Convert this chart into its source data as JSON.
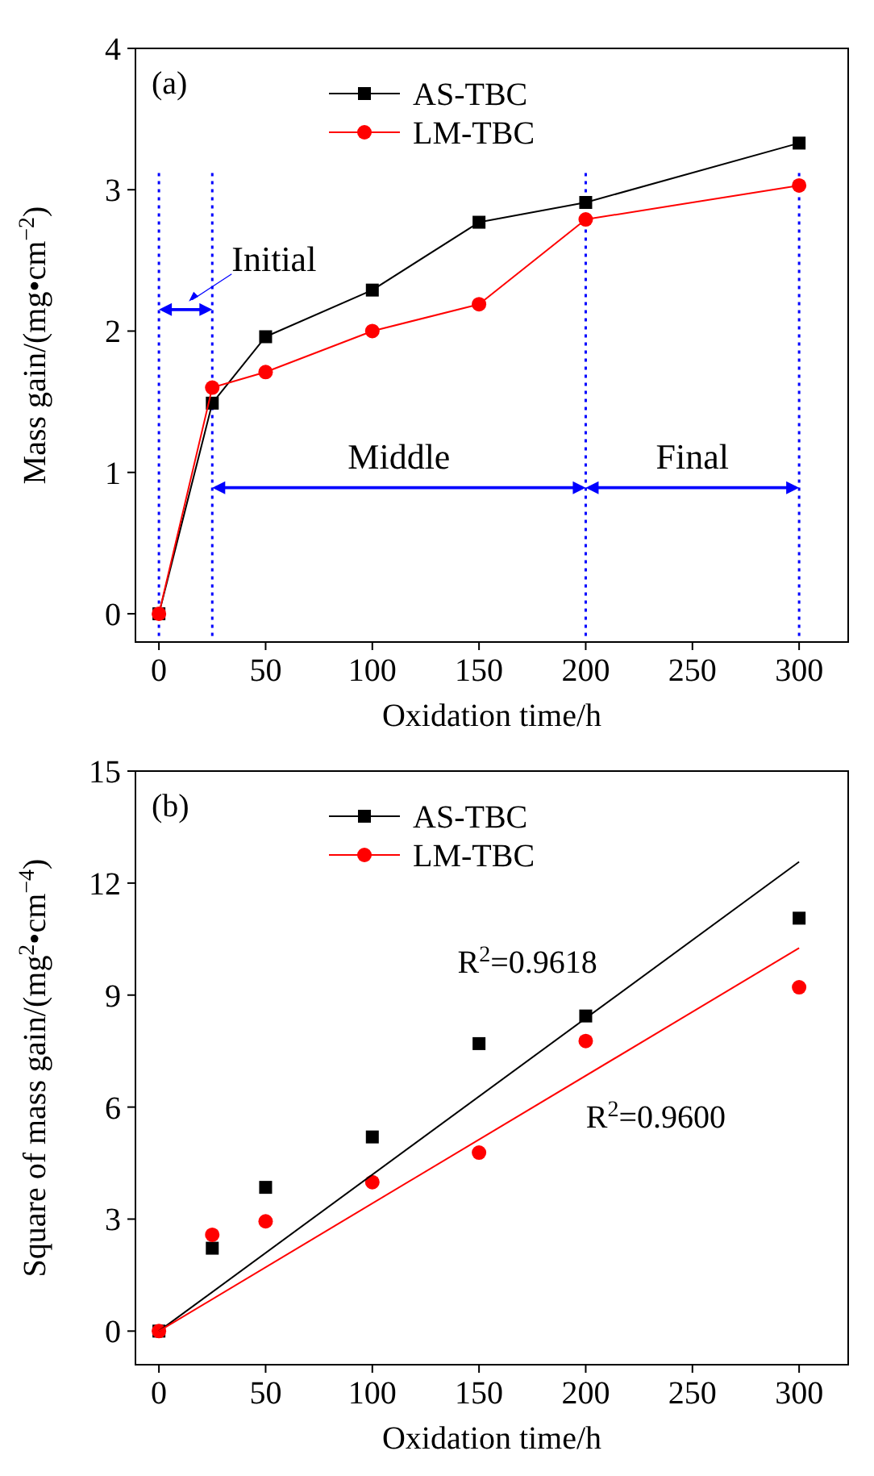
{
  "chart_data": [
    {
      "type": "line",
      "title": "(a)",
      "xlabel": "Oxidation time/h",
      "ylabel": "Mass gain/(mg•cm$^{−2}$)",
      "xlim": [
        -11,
        323
      ],
      "ylim": [
        -0.2,
        4
      ],
      "xticks": [
        0,
        50,
        100,
        150,
        200,
        250,
        300
      ],
      "yticks": [
        0,
        1,
        2,
        3,
        4
      ],
      "legend": "top",
      "series": [
        {
          "name": "AS-TBC",
          "color": "#000000",
          "marker": "square",
          "x": [
            0,
            25,
            50,
            100,
            150,
            200,
            300
          ],
          "values": [
            0,
            1.49,
            1.96,
            2.29,
            2.77,
            2.91,
            3.33
          ]
        },
        {
          "name": "LM-TBC",
          "color": "#ff0000",
          "marker": "circle",
          "x": [
            0,
            25,
            50,
            100,
            150,
            200,
            300
          ],
          "values": [
            0,
            1.6,
            1.71,
            2.0,
            2.19,
            2.79,
            3.03
          ]
        }
      ],
      "ref_lines": [
        {
          "axis": "x",
          "value": 0,
          "color": "#0000ff",
          "line_style": "dotted"
        },
        {
          "axis": "x",
          "value": 25,
          "color": "#0000ff",
          "line_style": "dotted"
        },
        {
          "axis": "x",
          "value": 200,
          "color": "#0000ff",
          "line_style": "dotted"
        },
        {
          "axis": "x",
          "value": 300,
          "color": "#0000ff",
          "line_style": "dotted"
        }
      ],
      "annotations": [
        "Initial",
        "Middle",
        "Final"
      ]
    },
    {
      "type": "scatter",
      "title": "(b)",
      "xlabel": "Oxidation time/h",
      "ylabel": "Square of mass gain/(mg$^{2}$•cm$^{−4}$)",
      "xlim": [
        -11,
        323
      ],
      "ylim": [
        -0.9,
        15
      ],
      "xticks": [
        0,
        50,
        100,
        150,
        200,
        250,
        300
      ],
      "yticks": [
        0,
        3,
        6,
        9,
        12,
        15
      ],
      "legend": "top",
      "series": [
        {
          "name": "AS-TBC",
          "color": "#000000",
          "marker": "square",
          "x": [
            0,
            25,
            50,
            100,
            150,
            200,
            300
          ],
          "values": [
            0,
            2.22,
            3.85,
            5.2,
            7.7,
            8.44,
            11.06
          ]
        },
        {
          "name": "LM-TBC",
          "color": "#ff0000",
          "marker": "circle",
          "x": [
            0,
            25,
            50,
            100,
            150,
            200,
            300
          ],
          "values": [
            0,
            2.58,
            2.94,
            3.99,
            4.78,
            7.77,
            9.21
          ]
        },
        {
          "type": "line",
          "color": "#000000",
          "marker": "none",
          "x": [
            0,
            300
          ],
          "values": [
            0,
            12.57
          ]
        },
        {
          "type": "line",
          "color": "#ff0000",
          "marker": "none",
          "x": [
            0,
            300
          ],
          "values": [
            0,
            10.26
          ]
        }
      ],
      "annotations": [
        "R$^{2}$=0.9618",
        "R$^{2}$=0.9600"
      ]
    }
  ]
}
